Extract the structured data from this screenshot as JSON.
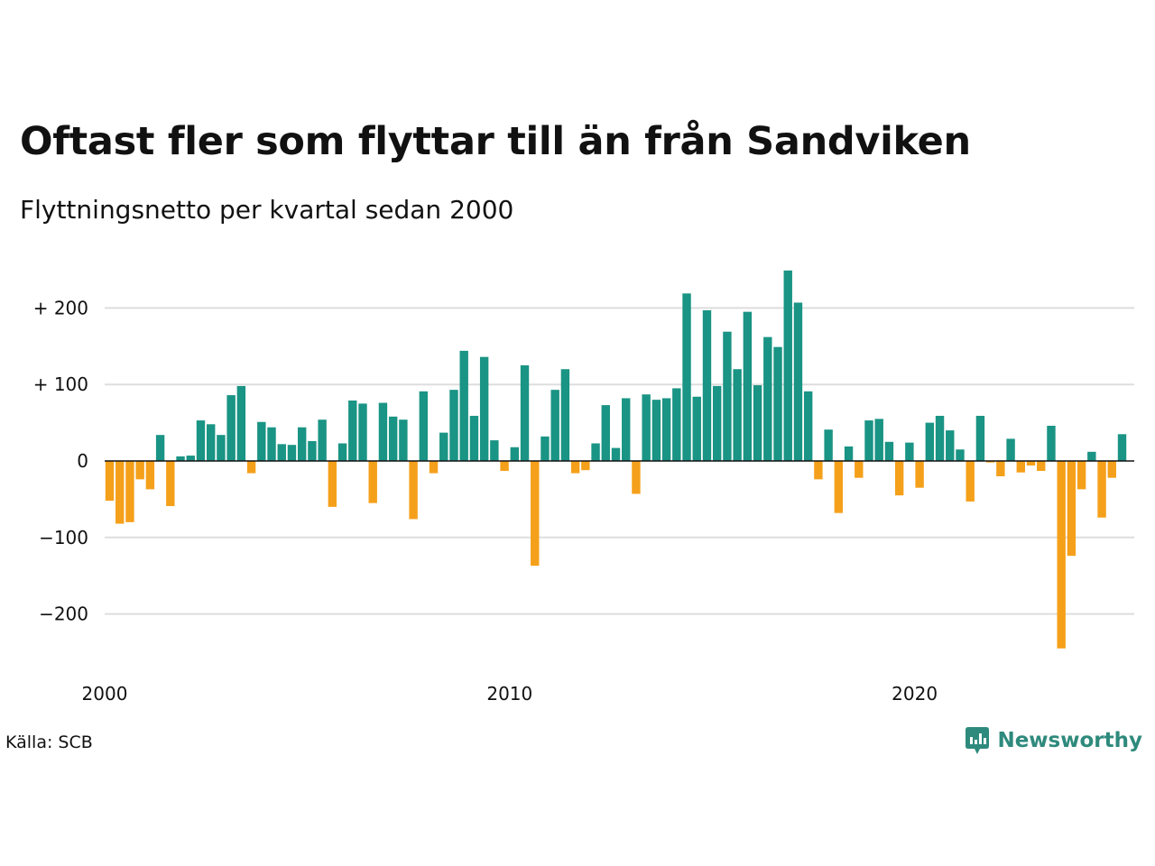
{
  "title": "Oftast fler som flyttar till än från Sandviken",
  "subtitle": "Flyttningsnetto per kvartal sedan 2000",
  "source": "Källa: SCB",
  "brand": {
    "name": "Newsworthy",
    "icon": "newsworthy-logo-icon"
  },
  "colors": {
    "positive": "#1a9484",
    "negative": "#f5a01a",
    "grid": "#dddddd",
    "zero": "#111111",
    "brand": "#2e8a7c"
  },
  "chart_data": {
    "type": "bar",
    "title": "Oftast fler som flyttar till än från Sandviken",
    "subtitle": "Flyttningsnetto per kvartal sedan 2000",
    "xlabel": "",
    "ylabel": "",
    "x_start": "2000-Q1",
    "frequency": "quarter",
    "ylim": [
      -250,
      250
    ],
    "yticks": [
      200,
      100,
      0,
      -100,
      -200
    ],
    "ytick_labels": [
      "+ 200",
      "+ 100",
      "0",
      "−100",
      "−200"
    ],
    "xticks": [
      "2000",
      "2010",
      "2020"
    ],
    "grid": true,
    "legend": "none",
    "values": [
      -52,
      -82,
      -80,
      -24,
      -37,
      34,
      -59,
      6,
      7,
      53,
      48,
      34,
      86,
      98,
      -16,
      51,
      44,
      22,
      21,
      44,
      26,
      54,
      -60,
      23,
      79,
      75,
      -55,
      76,
      58,
      54,
      -76,
      91,
      -16,
      37,
      93,
      144,
      59,
      136,
      27,
      -13,
      18,
      125,
      -137,
      32,
      93,
      120,
      -16,
      -12,
      23,
      73,
      17,
      82,
      -43,
      87,
      80,
      82,
      95,
      219,
      84,
      197,
      98,
      169,
      120,
      195,
      99,
      162,
      149,
      249,
      207,
      91,
      -24,
      41,
      -68,
      19,
      -22,
      53,
      55,
      25,
      -45,
      24,
      -35,
      50,
      59,
      40,
      15,
      -53,
      59,
      -2,
      -20,
      29,
      -15,
      -6,
      -13,
      46,
      -245,
      -124,
      -37,
      12,
      -74,
      -22,
      35
    ]
  }
}
